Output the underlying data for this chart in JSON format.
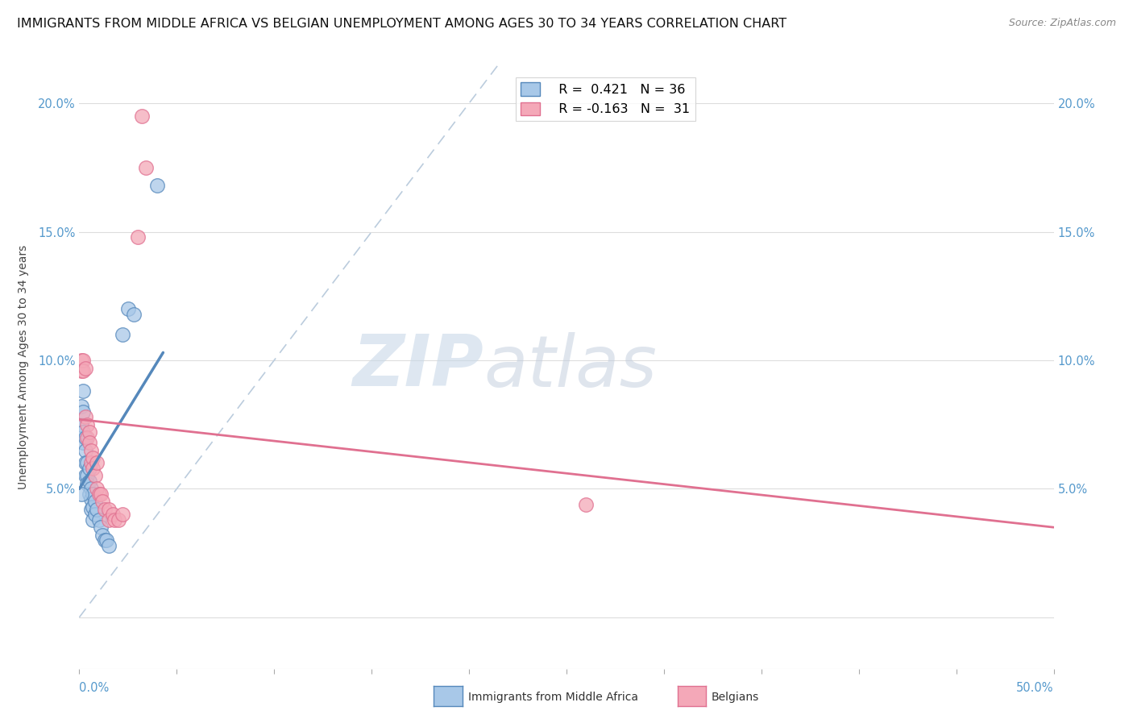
{
  "title": "IMMIGRANTS FROM MIDDLE AFRICA VS BELGIAN UNEMPLOYMENT AMONG AGES 30 TO 34 YEARS CORRELATION CHART",
  "source": "Source: ZipAtlas.com",
  "ylabel": "Unemployment Among Ages 30 to 34 years",
  "ytick_labels": [
    "",
    "5.0%",
    "10.0%",
    "15.0%",
    "20.0%"
  ],
  "ytick_values": [
    0,
    0.05,
    0.1,
    0.15,
    0.2
  ],
  "xlim": [
    0,
    0.5
  ],
  "ylim": [
    -0.02,
    0.215
  ],
  "legend_blue_r": "R =  0.421",
  "legend_blue_n": "N = 36",
  "legend_pink_r": "R = -0.163",
  "legend_pink_n": "N =  31",
  "watermark_zip": "ZIP",
  "watermark_atlas": "atlas",
  "blue_color": "#A8C8E8",
  "pink_color": "#F4A8B8",
  "blue_edge": "#5588BB",
  "pink_edge": "#E07090",
  "blue_scatter": [
    [
      0.001,
      0.082
    ],
    [
      0.001,
      0.075
    ],
    [
      0.002,
      0.088
    ],
    [
      0.002,
      0.08
    ],
    [
      0.002,
      0.072
    ],
    [
      0.002,
      0.068
    ],
    [
      0.003,
      0.07
    ],
    [
      0.003,
      0.065
    ],
    [
      0.003,
      0.06
    ],
    [
      0.003,
      0.055
    ],
    [
      0.004,
      0.06
    ],
    [
      0.004,
      0.055
    ],
    [
      0.004,
      0.052
    ],
    [
      0.005,
      0.058
    ],
    [
      0.005,
      0.053
    ],
    [
      0.005,
      0.048
    ],
    [
      0.006,
      0.05
    ],
    [
      0.006,
      0.046
    ],
    [
      0.006,
      0.042
    ],
    [
      0.007,
      0.048
    ],
    [
      0.007,
      0.043
    ],
    [
      0.007,
      0.038
    ],
    [
      0.008,
      0.045
    ],
    [
      0.008,
      0.04
    ],
    [
      0.009,
      0.042
    ],
    [
      0.01,
      0.038
    ],
    [
      0.011,
      0.035
    ],
    [
      0.012,
      0.032
    ],
    [
      0.013,
      0.03
    ],
    [
      0.014,
      0.03
    ],
    [
      0.015,
      0.028
    ],
    [
      0.022,
      0.11
    ],
    [
      0.025,
      0.12
    ],
    [
      0.028,
      0.118
    ],
    [
      0.04,
      0.168
    ],
    [
      0.001,
      0.048
    ]
  ],
  "pink_scatter": [
    [
      0.001,
      0.1
    ],
    [
      0.001,
      0.096
    ],
    [
      0.002,
      0.1
    ],
    [
      0.002,
      0.096
    ],
    [
      0.003,
      0.097
    ],
    [
      0.003,
      0.078
    ],
    [
      0.004,
      0.075
    ],
    [
      0.004,
      0.07
    ],
    [
      0.005,
      0.072
    ],
    [
      0.005,
      0.068
    ],
    [
      0.006,
      0.065
    ],
    [
      0.006,
      0.06
    ],
    [
      0.007,
      0.062
    ],
    [
      0.007,
      0.058
    ],
    [
      0.008,
      0.055
    ],
    [
      0.009,
      0.06
    ],
    [
      0.009,
      0.05
    ],
    [
      0.01,
      0.048
    ],
    [
      0.011,
      0.048
    ],
    [
      0.012,
      0.045
    ],
    [
      0.013,
      0.042
    ],
    [
      0.015,
      0.042
    ],
    [
      0.015,
      0.038
    ],
    [
      0.017,
      0.04
    ],
    [
      0.018,
      0.038
    ],
    [
      0.02,
      0.038
    ],
    [
      0.022,
      0.04
    ],
    [
      0.03,
      0.148
    ],
    [
      0.032,
      0.195
    ],
    [
      0.034,
      0.175
    ],
    [
      0.26,
      0.044
    ]
  ],
  "blue_line_x": [
    0.0,
    0.043
  ],
  "blue_line_y": [
    0.05,
    0.103
  ],
  "pink_line_x": [
    0.0,
    0.5
  ],
  "pink_line_y": [
    0.077,
    0.035
  ],
  "diag_line_x": [
    0.0,
    0.215
  ],
  "diag_line_y": [
    0.0,
    0.215
  ],
  "grid_color": "#DDDDDD",
  "title_fontsize": 11.5,
  "axis_label_fontsize": 10,
  "tick_fontsize": 10.5
}
